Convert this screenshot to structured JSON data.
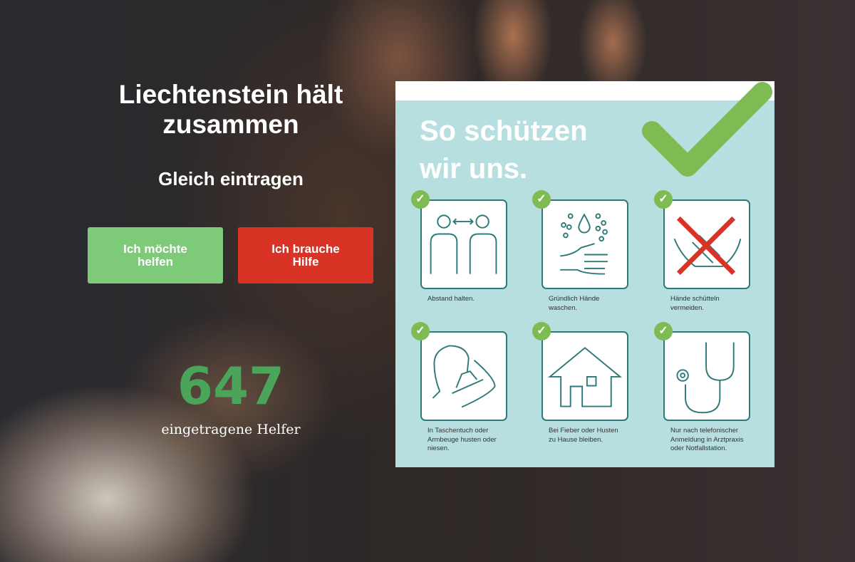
{
  "hero": {
    "title": "Liechtenstein hält zusammen",
    "subtitle": "Gleich eintragen"
  },
  "buttons": {
    "help_offer": "Ich möchte helfen",
    "help_need": "Ich brauche Hilfe"
  },
  "colors": {
    "green_button": "#7dcb78",
    "red_button": "#d93326",
    "counter": "#4aa55a",
    "poster_bg": "#b8dfe0",
    "check": "#7ebc53"
  },
  "stats": {
    "count": "647",
    "label": "eingetragene Helfer"
  },
  "poster": {
    "title_line1": "So schützen",
    "title_line2": "wir uns.",
    "tiles": [
      {
        "icon": "distance-icon",
        "caption": "Abstand halten."
      },
      {
        "icon": "hand-wash-icon",
        "caption": "Gründlich Hände waschen."
      },
      {
        "icon": "no-handshake-icon",
        "caption": "Hände schütteln vermeiden."
      },
      {
        "icon": "sneeze-icon",
        "caption": "In Taschentuch oder Armbeuge husten oder niesen."
      },
      {
        "icon": "house-icon",
        "caption": "Bei Fieber oder Husten zu Hause bleiben."
      },
      {
        "icon": "stethoscope-icon",
        "caption": "Nur nach telefonischer Anmeldung in Arztpraxis oder Notfallstation."
      }
    ]
  }
}
